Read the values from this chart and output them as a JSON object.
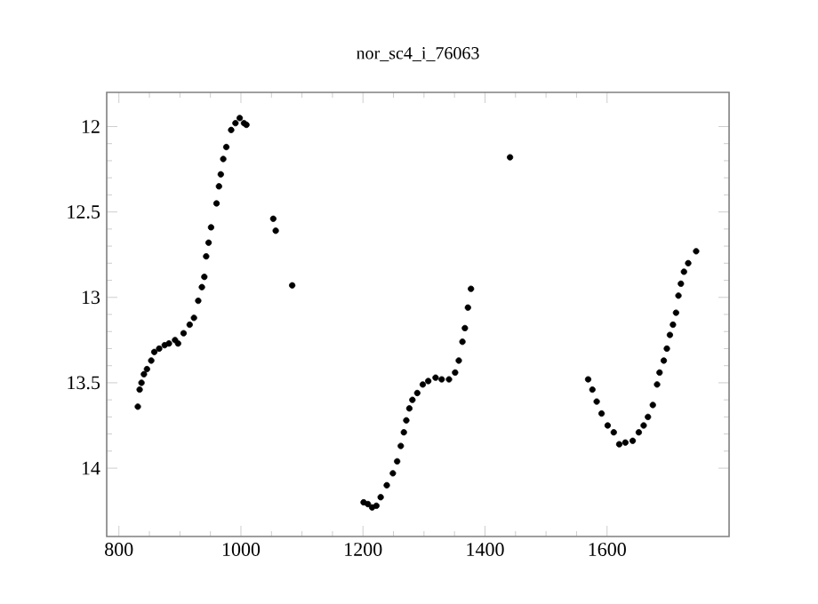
{
  "chart_data": {
    "type": "scatter",
    "title": "nor_sc4_i_76063",
    "marker": "circle",
    "grid": false,
    "xlim": [
      780,
      1800
    ],
    "ylim": [
      14.4,
      11.8
    ],
    "xticks": [
      800,
      1000,
      1200,
      1400,
      1600
    ],
    "yticks": [
      12,
      12.5,
      13,
      13.5,
      14
    ],
    "series": [
      {
        "color": "#000000",
        "x": [
          831,
          834,
          837,
          841,
          846,
          853,
          858,
          866,
          875,
          882,
          892,
          897,
          906,
          916,
          923,
          930,
          936,
          940,
          943,
          947,
          951,
          960,
          964,
          967,
          971,
          976,
          984,
          991,
          998,
          1005,
          1009,
          1053,
          1057,
          1084,
          1201,
          1208,
          1215,
          1222,
          1229,
          1239,
          1249,
          1256,
          1262,
          1267,
          1271,
          1276,
          1281,
          1289,
          1298,
          1307,
          1319,
          1329,
          1341,
          1351,
          1357,
          1363,
          1367,
          1372,
          1377,
          1441,
          1569,
          1576,
          1583,
          1591,
          1601,
          1611,
          1620,
          1630,
          1642,
          1652,
          1660,
          1667,
          1675,
          1682,
          1686,
          1693,
          1698,
          1703,
          1708,
          1713,
          1717,
          1721,
          1726,
          1733,
          1746
        ],
        "values": [
          13.64,
          13.54,
          13.5,
          13.45,
          13.42,
          13.37,
          13.32,
          13.3,
          13.28,
          13.27,
          13.25,
          13.27,
          13.21,
          13.16,
          13.12,
          13.02,
          12.94,
          12.88,
          12.76,
          12.68,
          12.59,
          12.45,
          12.35,
          12.28,
          12.19,
          12.12,
          12.02,
          11.98,
          11.95,
          11.98,
          11.99,
          12.54,
          12.61,
          12.93,
          14.2,
          14.21,
          14.23,
          14.22,
          14.17,
          14.1,
          14.03,
          13.96,
          13.87,
          13.79,
          13.72,
          13.65,
          13.6,
          13.56,
          13.51,
          13.49,
          13.47,
          13.48,
          13.48,
          13.44,
          13.37,
          13.26,
          13.18,
          13.06,
          12.95,
          12.18,
          13.48,
          13.54,
          13.61,
          13.68,
          13.75,
          13.79,
          13.86,
          13.85,
          13.84,
          13.79,
          13.75,
          13.7,
          13.63,
          13.51,
          13.44,
          13.37,
          13.3,
          13.22,
          13.16,
          13.09,
          12.99,
          12.92,
          12.85,
          12.8,
          12.73
        ]
      }
    ]
  }
}
